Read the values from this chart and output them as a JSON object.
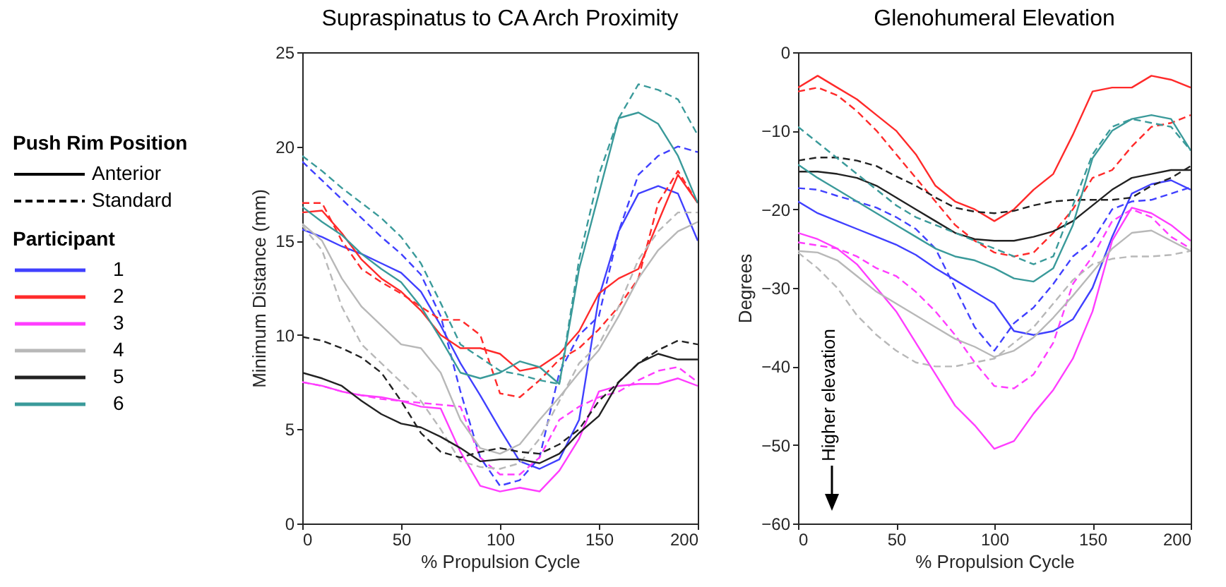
{
  "chart_data": [
    {
      "type": "line",
      "title": "Supraspinatus to CA Arch Proximity",
      "xlabel": "% Propulsion Cycle",
      "ylabel": "Minimum Distance (mm)",
      "legend_title": "Participant",
      "legend": "left",
      "xlim": [
        0,
        200
      ],
      "xticks": [
        0,
        50,
        100,
        150,
        200
      ],
      "ylim": [
        0,
        25
      ],
      "yticks": [
        0,
        5,
        10,
        15,
        20,
        25
      ],
      "annotations": [
        "Push Rim Position",
        "Anterior",
        "Standard"
      ],
      "x": [
        0,
        10,
        20,
        30,
        40,
        50,
        60,
        70,
        80,
        90,
        100,
        110,
        120,
        130,
        140,
        150,
        160,
        170,
        180,
        190,
        200
      ],
      "series": [
        {
          "name": "1",
          "color": "#4040ff",
          "line_style": "solid",
          "values": [
            15.6,
            15.2,
            14.7,
            14.3,
            13.8,
            13.3,
            12.3,
            10.5,
            8.5,
            6.8,
            5.0,
            3.3,
            2.9,
            3.4,
            5.5,
            12,
            15.5,
            17.5,
            17.9,
            17.5,
            15
          ]
        },
        {
          "color": "#4040ff",
          "line_style": "dashed",
          "values": [
            19.2,
            18.2,
            17.2,
            16.2,
            15.2,
            14.3,
            13.2,
            11,
            7,
            3.5,
            2.0,
            2.3,
            3.5,
            8,
            10,
            11,
            15.5,
            18.5,
            19.5,
            20,
            19.7
          ]
        },
        {
          "name": "2",
          "color": "#ff2a2a",
          "line_style": "solid",
          "values": [
            16.5,
            16.6,
            15.4,
            14,
            13,
            12.3,
            11.3,
            10,
            9.3,
            9.3,
            9,
            8.1,
            8.3,
            9,
            10.2,
            12.2,
            13,
            13.5,
            16,
            18.5,
            17
          ]
        },
        {
          "color": "#ff2a2a",
          "line_style": "dashed",
          "values": [
            17,
            17,
            15,
            13.5,
            12.8,
            12.2,
            11.5,
            10.8,
            10.8,
            10,
            6.9,
            6.7,
            7.6,
            8.7,
            9.3,
            10.3,
            11.5,
            13,
            17,
            18.7,
            17
          ]
        },
        {
          "name": "3",
          "color": "#ff3dff",
          "line_style": "solid",
          "values": [
            7.5,
            7.3,
            7.0,
            6.8,
            6.7,
            6.5,
            6.2,
            6.1,
            3.8,
            2.0,
            1.7,
            1.9,
            1.7,
            2.8,
            4.5,
            7,
            7.3,
            7.4,
            7.4,
            7.7,
            7.3
          ]
        },
        {
          "color": "#ff3dff",
          "line_style": "dashed",
          "values": [
            7.5,
            7.3,
            7.0,
            6.8,
            6.6,
            6.5,
            6.4,
            6.3,
            6.2,
            3.5,
            2.6,
            2.6,
            3.5,
            5.5,
            6.2,
            6.7,
            7,
            7.6,
            8.1,
            8.3,
            7.5
          ]
        },
        {
          "name": "4",
          "color": "#b8b8b8",
          "line_style": "solid",
          "values": [
            15.9,
            15.0,
            13,
            11.5,
            10.5,
            9.5,
            9.3,
            8,
            5.5,
            4.0,
            3.7,
            4.2,
            5.5,
            6.7,
            8,
            9.2,
            11,
            13,
            14.5,
            15.5,
            16
          ]
        },
        {
          "color": "#b8b8b8",
          "line_style": "dashed",
          "values": [
            15.8,
            14.5,
            11.5,
            9.5,
            8.5,
            7.5,
            6.5,
            5.0,
            3.3,
            3.0,
            2.9,
            3.2,
            4.5,
            6.5,
            8.5,
            9.5,
            11.5,
            14,
            15.5,
            16.5,
            16.5
          ]
        },
        {
          "name": "5",
          "color": "#222222",
          "line_style": "solid",
          "values": [
            8.0,
            7.7,
            7.3,
            6.5,
            5.8,
            5.3,
            5.1,
            4.6,
            4.0,
            3.3,
            3.4,
            3.4,
            3.2,
            3.7,
            4.8,
            5.7,
            7.5,
            8.5,
            9.0,
            8.7,
            8.7
          ]
        },
        {
          "color": "#222222",
          "line_style": "dashed",
          "values": [
            9.9,
            9.7,
            9.3,
            8.8,
            8.0,
            6.5,
            4.8,
            3.8,
            3.5,
            3.8,
            4.0,
            3.8,
            3.7,
            4.2,
            5,
            6.5,
            7.5,
            8.5,
            9.2,
            9.7,
            9.5
          ]
        },
        {
          "name": "6",
          "color": "#3a9a9a",
          "line_style": "solid",
          "values": [
            16.8,
            16,
            15.3,
            14.3,
            13.5,
            12.8,
            11.5,
            9.8,
            8,
            7.7,
            8,
            8.6,
            8.3,
            7.4,
            13.5,
            17.5,
            21.5,
            21.8,
            21.2,
            19.5,
            17
          ]
        },
        {
          "color": "#3a9a9a",
          "line_style": "dashed",
          "values": [
            19.5,
            18.7,
            17.8,
            17,
            16.2,
            15.2,
            13.8,
            11.7,
            9.5,
            8.8,
            8.1,
            7.9,
            7.6,
            7.4,
            14,
            18.5,
            21.5,
            23.3,
            23,
            22.5,
            20.6
          ]
        }
      ]
    },
    {
      "type": "line",
      "title": "Glenohumeral Elevation",
      "xlabel": "% Propulsion Cycle",
      "ylabel": "Degrees",
      "xlim": [
        0,
        200
      ],
      "xticks": [
        0,
        50,
        100,
        150,
        200
      ],
      "ylim": [
        -60,
        0
      ],
      "yticks": [
        -60,
        -50,
        -40,
        -30,
        -20,
        -10,
        0
      ],
      "annotations": [
        "Higher elevation"
      ],
      "x": [
        0,
        10,
        20,
        30,
        40,
        50,
        60,
        70,
        80,
        90,
        100,
        110,
        120,
        130,
        140,
        150,
        160,
        170,
        180,
        190,
        200
      ],
      "series": [
        {
          "color": "#4040ff",
          "line_style": "solid",
          "values": [
            -19,
            -20.5,
            -21.5,
            -22.5,
            -23.5,
            -24.5,
            -25.8,
            -27.5,
            -29,
            -30.5,
            -32,
            -35.5,
            -36,
            -35.5,
            -34,
            -30,
            -23.5,
            -18,
            -16.8,
            -16.3,
            -17.5
          ]
        },
        {
          "color": "#4040ff",
          "line_style": "dashed",
          "values": [
            -17.3,
            -17.5,
            -18.3,
            -19,
            -19.8,
            -21,
            -22.5,
            -25,
            -30,
            -35,
            -38,
            -34.5,
            -32.5,
            -29.5,
            -26,
            -24,
            -20,
            -19,
            -18.8,
            -18,
            -17.2
          ]
        },
        {
          "color": "#ff2a2a",
          "line_style": "solid",
          "values": [
            -4.5,
            -3,
            -4.5,
            -6,
            -8,
            -10,
            -13,
            -17,
            -19,
            -20,
            -21.5,
            -20,
            -17.5,
            -15.5,
            -10.5,
            -5,
            -4.5,
            -4.5,
            -3,
            -3.5,
            -4.5
          ]
        },
        {
          "color": "#ff2a2a",
          "line_style": "dashed",
          "values": [
            -5,
            -4.5,
            -5.5,
            -7.5,
            -10,
            -13,
            -16,
            -19,
            -22,
            -24,
            -25.5,
            -26,
            -25.5,
            -23,
            -20,
            -16,
            -15,
            -12,
            -9.5,
            -9,
            -8
          ]
        },
        {
          "color": "#ff3dff",
          "line_style": "solid",
          "values": [
            -23,
            -23.8,
            -25,
            -27,
            -30,
            -33,
            -37,
            -41,
            -45,
            -47.5,
            -50.5,
            -49.5,
            -46,
            -43,
            -39,
            -33,
            -24,
            -19.8,
            -20.5,
            -22,
            -24
          ]
        },
        {
          "color": "#ff3dff",
          "line_style": "dashed",
          "values": [
            -24.2,
            -24.6,
            -25,
            -26,
            -27.5,
            -28.5,
            -30.5,
            -33,
            -36,
            -39.5,
            -42.5,
            -42.8,
            -41,
            -37,
            -29.5,
            -26,
            -21.5,
            -20,
            -21,
            -23.5,
            -25
          ]
        },
        {
          "color": "#b8b8b8",
          "line_style": "solid",
          "values": [
            -25.3,
            -25.5,
            -26.5,
            -28.5,
            -30.5,
            -32,
            -33.5,
            -35,
            -36.5,
            -37.5,
            -38.8,
            -38,
            -36.3,
            -33.8,
            -31,
            -28,
            -25,
            -23,
            -22.7,
            -24,
            -25.3
          ]
        },
        {
          "color": "#b8b8b8",
          "line_style": "dashed",
          "values": [
            -25.5,
            -27.5,
            -30,
            -33.5,
            -36,
            -38,
            -39.5,
            -40,
            -40,
            -39.5,
            -39,
            -37,
            -35,
            -32,
            -29,
            -27,
            -26.3,
            -26,
            -26,
            -25.8,
            -25.3
          ]
        },
        {
          "color": "#222222",
          "line_style": "solid",
          "values": [
            -15.2,
            -15.2,
            -15.5,
            -16,
            -17,
            -18.5,
            -20,
            -21.5,
            -23,
            -23.8,
            -24,
            -24,
            -23.5,
            -22.8,
            -21.5,
            -19.5,
            -17.5,
            -16,
            -15.5,
            -15,
            -15
          ]
        },
        {
          "color": "#222222",
          "line_style": "dashed",
          "values": [
            -13.8,
            -13.4,
            -13.4,
            -13.8,
            -14.5,
            -15.8,
            -17,
            -18.5,
            -19.8,
            -20.3,
            -20.5,
            -20.2,
            -19.5,
            -19,
            -18.8,
            -18.8,
            -18.8,
            -18.5,
            -17,
            -16,
            -14.5
          ]
        },
        {
          "color": "#3a9a9a",
          "line_style": "solid",
          "values": [
            -14.3,
            -16,
            -17.5,
            -19,
            -20.5,
            -22,
            -23.5,
            -25,
            -26,
            -26.5,
            -27.5,
            -28.8,
            -29.2,
            -27.5,
            -22,
            -13.5,
            -10,
            -8.5,
            -8,
            -8.5,
            -12.5
          ]
        },
        {
          "color": "#3a9a9a",
          "line_style": "dashed",
          "values": [
            -9.5,
            -11.5,
            -13.5,
            -15.5,
            -17.5,
            -19.5,
            -21,
            -22,
            -23,
            -24,
            -25,
            -26,
            -27,
            -26,
            -19.5,
            -13,
            -9.5,
            -8.5,
            -9,
            -9.5,
            -12.5
          ]
        }
      ]
    }
  ]
}
